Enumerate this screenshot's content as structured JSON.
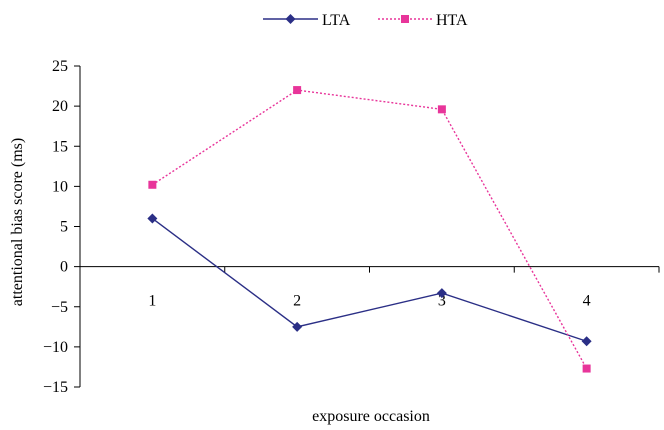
{
  "chart_data": {
    "type": "line",
    "title": "",
    "xlabel": "exposure occasion",
    "ylabel": "attentional bias score (ms)",
    "categories": [
      "1",
      "2",
      "3",
      "4"
    ],
    "ylim": [
      -15,
      25
    ],
    "yticks": [
      "25",
      "20",
      "15",
      "10",
      "5",
      "0",
      "−5",
      "−10",
      "−15"
    ],
    "legend_position": "top-center",
    "grid": false,
    "series": [
      {
        "name": "LTA",
        "values": [
          6.0,
          -7.5,
          -3.3,
          -9.3
        ],
        "color": "#2b2f86",
        "marker": "diamond",
        "line_style": "solid"
      },
      {
        "name": "HTA",
        "values": [
          10.2,
          22.0,
          19.6,
          -12.7
        ],
        "color": "#e8359a",
        "marker": "square",
        "line_style": "dotted"
      }
    ]
  }
}
